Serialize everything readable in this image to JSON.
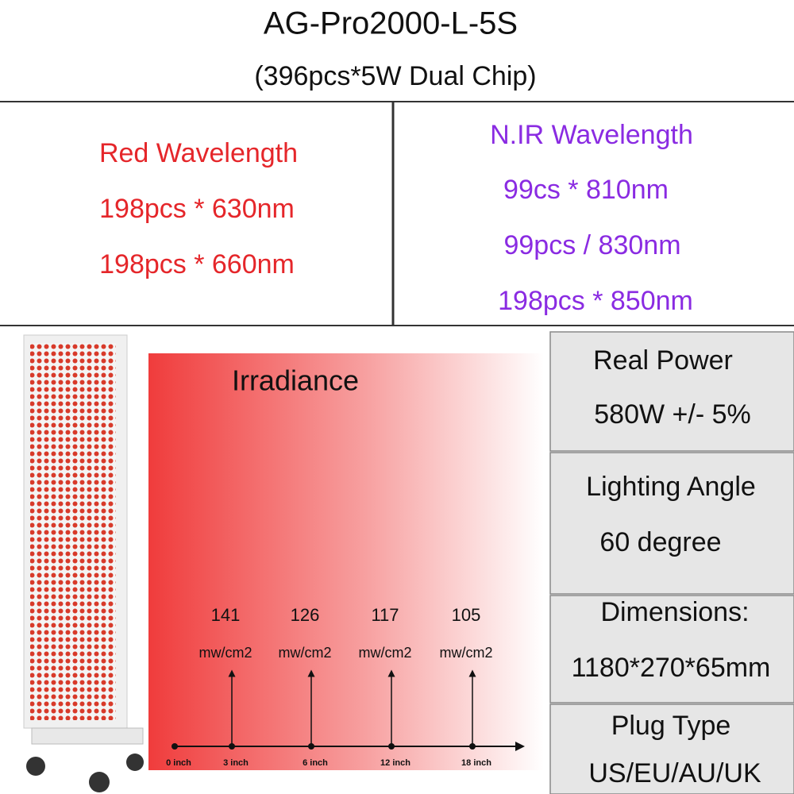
{
  "header": {
    "title": "AG-Pro2000-L-5S",
    "subtitle": "(396pcs*5W Dual Chip)"
  },
  "red": {
    "title": "Red Wavelength",
    "lines": [
      "198pcs * 630nm",
      "198pcs * 660nm"
    ]
  },
  "nir": {
    "title": "N.IR Wavelength",
    "lines": [
      "99cs * 810nm",
      "99pcs / 830nm",
      "198pcs * 850nm"
    ]
  },
  "irradiance": {
    "title": "Irradiance",
    "origin": "0 inch",
    "points": [
      {
        "value": 141,
        "unit": "mw/cm2",
        "distance": "3 inch"
      },
      {
        "value": 126,
        "unit": "mw/cm2",
        "distance": "6 inch"
      },
      {
        "value": 117,
        "unit": "mw/cm2",
        "distance": "12 inch"
      },
      {
        "value": 105,
        "unit": "mw/cm2",
        "distance": "18 inch"
      }
    ]
  },
  "specs": [
    {
      "label": "Real Power",
      "value": "580W +/- 5%"
    },
    {
      "label": "Lighting Angle",
      "value": "60 degree"
    },
    {
      "label": "Dimensions:",
      "value": "1180*270*65mm"
    },
    {
      "label": "Plug Type",
      "value": "US/EU/AU/UK"
    }
  ]
}
